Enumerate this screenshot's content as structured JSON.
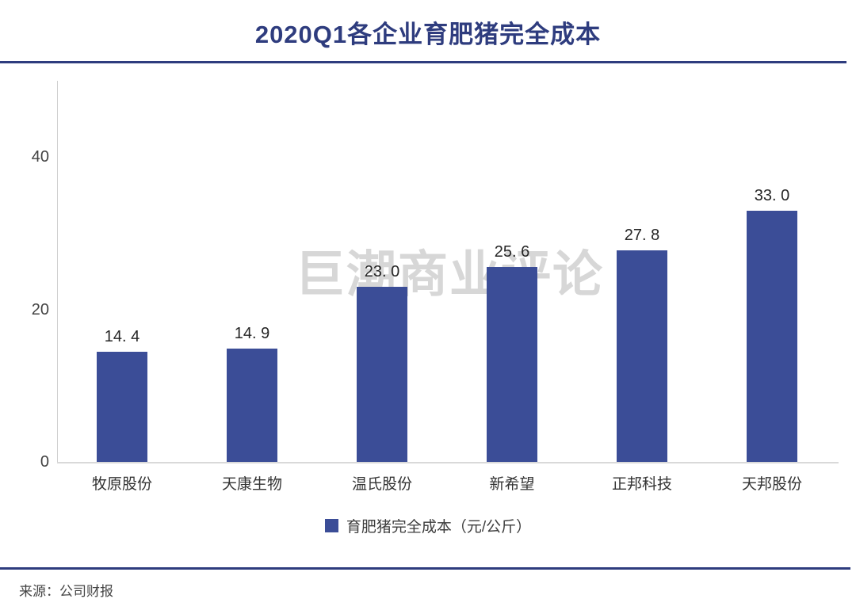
{
  "header": {
    "title": "2020Q1各企业育肥猪完全成本"
  },
  "watermark": "巨潮商业评论",
  "legend": {
    "label": "育肥猪完全成本（元/公斤）",
    "swatch_color": "#3b4d97"
  },
  "footer": {
    "source": "来源：公司财报"
  },
  "colors": {
    "bar": "#3b4d97",
    "accent_rule": "#2e3c7e",
    "watermark": "#d7d7d7",
    "axis_line": "#d9d9d9"
  },
  "chart_data": {
    "type": "bar",
    "title": "2020Q1各企业育肥猪完全成本",
    "categories": [
      "牧原股份",
      "天康生物",
      "温氏股份",
      "新希望",
      "正邦科技",
      "天邦股份"
    ],
    "values": [
      14.4,
      14.9,
      23.0,
      25.6,
      27.8,
      33.0
    ],
    "value_labels": [
      "14. 4",
      "14. 9",
      "23. 0",
      "25. 6",
      "27. 8",
      "33. 0"
    ],
    "series_name": "育肥猪完全成本（元/公斤）",
    "xlabel": "",
    "ylabel": "",
    "ylim": [
      0,
      50
    ],
    "yticks": [
      0,
      20,
      40
    ],
    "grid": false,
    "legend_position": "bottom",
    "bar_color": "#3b4d97"
  }
}
